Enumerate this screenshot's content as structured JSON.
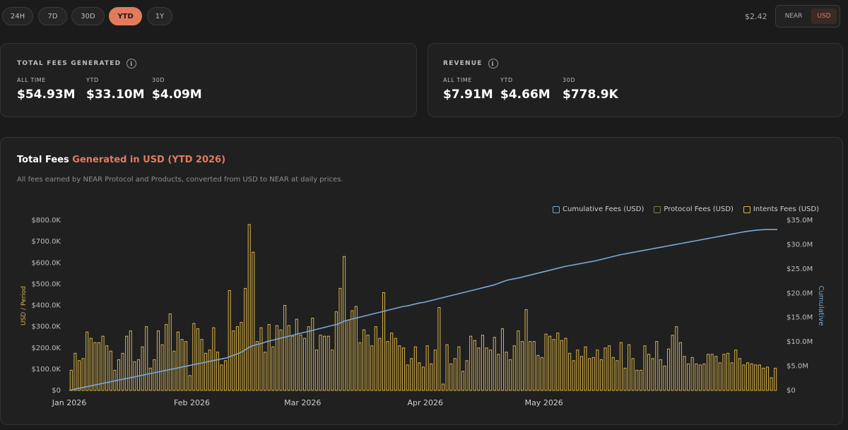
{
  "range_tabs": [
    {
      "label": "24H",
      "active": false
    },
    {
      "label": "7D",
      "active": false
    },
    {
      "label": "30D",
      "active": false
    },
    {
      "label": "YTD",
      "active": true
    },
    {
      "label": "1Y",
      "active": false
    }
  ],
  "near_price": "$2.42",
  "currency_toggle": {
    "near": "NEAR",
    "usd": "USD",
    "selected": "USD"
  },
  "fees_card": {
    "title": "TOTAL FEES GENERATED",
    "stats": [
      {
        "label": "ALL TIME",
        "value": "$54.93M"
      },
      {
        "label": "YTD",
        "value": "$33.10M"
      },
      {
        "label": "30D",
        "value": "$4.09M"
      }
    ]
  },
  "revenue_card": {
    "title": "REVENUE",
    "stats": [
      {
        "label": "ALL TIME",
        "value": "$7.91M"
      },
      {
        "label": "YTD",
        "value": "$4.66M"
      },
      {
        "label": "30D",
        "value": "$778.9K"
      }
    ]
  },
  "chart_section": {
    "title_main": "Total Fees ",
    "title_accent": "Generated in USD (YTD 2026)",
    "subtitle": "All fees earned by NEAR Protocol and Products, converted from USD to NEAR at daily prices."
  },
  "colors": {
    "accent": "#e27b5c",
    "intents": "#d9b34a",
    "protocol": "#6f7f4f",
    "cumulative": "#7aa7d8"
  },
  "chart_data": {
    "type": "bar",
    "x_ticks": [
      "Jan 2026",
      "Feb 2026",
      "Mar 2026",
      "Apr 2026",
      "May 2026"
    ],
    "y_left": {
      "label": "USD / Period",
      "ticks": [
        "$0",
        "$100.0K",
        "$200.0K",
        "$300.0K",
        "$400.0K",
        "$500.0K",
        "$600.0K",
        "$700.0K",
        "$800.0K"
      ],
      "range": [
        0,
        800000
      ]
    },
    "y_right": {
      "label": "Cumulative",
      "ticks": [
        "$0",
        "$5.0M",
        "$10.0M",
        "$15.0M",
        "$20.0M",
        "$25.0M",
        "$30.0M",
        "$35.0M"
      ],
      "range": [
        0,
        35000000
      ]
    },
    "legend": [
      "Cumulative Fees (USD)",
      "Protocol Fees (USD)",
      "Intents Fees (USD)"
    ],
    "start_day": "2026-01-01",
    "series": [
      {
        "name": "Intents Fees (USD)",
        "kind": "bar",
        "values": [
          95000,
          175000,
          140000,
          150000,
          275000,
          245000,
          225000,
          225000,
          255000,
          210000,
          185000,
          95000,
          145000,
          175000,
          255000,
          280000,
          135000,
          145000,
          205000,
          300000,
          105000,
          145000,
          280000,
          215000,
          310000,
          360000,
          185000,
          275000,
          240000,
          230000,
          70000,
          315000,
          290000,
          240000,
          175000,
          190000,
          295000,
          180000,
          120000,
          140000,
          470000,
          280000,
          300000,
          320000,
          480000,
          780000,
          650000,
          230000,
          295000,
          180000,
          310000,
          205000,
          305000,
          285000,
          400000,
          305000,
          255000,
          335000,
          260000,
          245000,
          300000,
          340000,
          190000,
          260000,
          255000,
          255000,
          190000,
          370000,
          480000,
          630000,
          330000,
          375000,
          395000,
          225000,
          285000,
          260000,
          210000,
          300000,
          245000,
          460000,
          230000,
          270000,
          245000,
          210000,
          200000,
          120000,
          150000,
          205000,
          130000,
          110000,
          210000,
          125000,
          190000,
          390000,
          30000,
          215000,
          125000,
          150000,
          205000,
          90000,
          140000,
          255000,
          235000,
          200000,
          260000,
          200000,
          190000,
          250000,
          170000,
          290000,
          180000,
          145000,
          210000,
          280000,
          230000,
          380000,
          230000,
          230000,
          165000,
          155000,
          265000,
          255000,
          240000,
          270000,
          235000,
          245000,
          175000,
          140000,
          190000,
          160000,
          205000,
          150000,
          155000,
          190000,
          145000,
          200000,
          210000,
          155000,
          140000,
          225000,
          105000,
          215000,
          150000,
          95000,
          95000,
          210000,
          170000,
          150000,
          230000,
          145000,
          115000,
          195000,
          260000,
          300000,
          225000,
          160000,
          125000,
          155000,
          125000,
          120000,
          125000,
          170000,
          170000,
          160000,
          130000,
          170000,
          175000,
          130000,
          190000,
          150000,
          120000,
          130000,
          125000,
          120000,
          120000,
          105000,
          110000,
          60000,
          105000
        ]
      },
      {
        "name": "Protocol Fees (USD)",
        "kind": "bar",
        "values": []
      },
      {
        "name": "Cumulative Fees (USD)",
        "kind": "line",
        "axis": "right",
        "values": [
          0,
          200000,
          370000,
          540000,
          700000,
          870000,
          1040000,
          1200000,
          1370000,
          1540000,
          1700000,
          1870000,
          2040000,
          2200000,
          2370000,
          2540000,
          2700000,
          2870000,
          3040000,
          3200000,
          3370000,
          3540000,
          3700000,
          3870000,
          4040000,
          4200000,
          4370000,
          4540000,
          4700000,
          4870000,
          5040000,
          5200000,
          5370000,
          5540000,
          5700000,
          5870000,
          6040000,
          6200000,
          6370000,
          6540000,
          6700000,
          7000000,
          7300000,
          7600000,
          8000000,
          8500000,
          9000000,
          9300000,
          9500000,
          9700000,
          10000000,
          10200000,
          10400000,
          10600000,
          10800000,
          11000000,
          11200000,
          11400000,
          11600000,
          11800000,
          12000000,
          12200000,
          12400000,
          12600000,
          12800000,
          13000000,
          13200000,
          13400000,
          13600000,
          13900000,
          14300000,
          14500000,
          14700000,
          14900000,
          15100000,
          15300000,
          15500000,
          15700000,
          15900000,
          16100000,
          16300000,
          16500000,
          16700000,
          16900000,
          17100000,
          17300000,
          17400000,
          17600000,
          17800000,
          18000000,
          18100000,
          18300000,
          18500000,
          18700000,
          18900000,
          19100000,
          19300000,
          19500000,
          19700000,
          19900000,
          20100000,
          20300000,
          20500000,
          20700000,
          20900000,
          21100000,
          21300000,
          21500000,
          21700000,
          22000000,
          22300000,
          22600000,
          22800000,
          22950000,
          23100000,
          23300000,
          23500000,
          23700000,
          23900000,
          24100000,
          24300000,
          24500000,
          24700000,
          24900000,
          25100000,
          25300000,
          25500000,
          25650000,
          25800000,
          25950000,
          26100000,
          26250000,
          26400000,
          26550000,
          26700000,
          26900000,
          27100000,
          27300000,
          27500000,
          27700000,
          27900000,
          28050000,
          28200000,
          28350000,
          28500000,
          28650000,
          28800000,
          28950000,
          29100000,
          29250000,
          29400000,
          29550000,
          29700000,
          29850000,
          30000000,
          30150000,
          30300000,
          30450000,
          30600000,
          30750000,
          30900000,
          31050000,
          31200000,
          31350000,
          31500000,
          31650000,
          31800000,
          31950000,
          32100000,
          32250000,
          32400000,
          32550000,
          32700000,
          32800000,
          32900000,
          33000000,
          33050000,
          33100000,
          33100000,
          33100000,
          33100000
        ]
      }
    ]
  }
}
